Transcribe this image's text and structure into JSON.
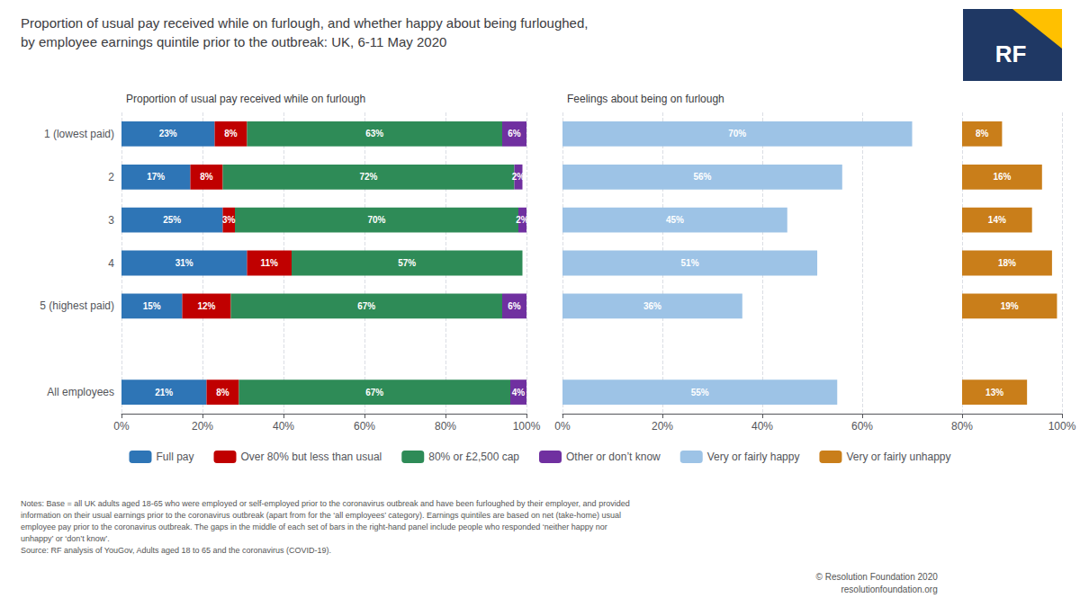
{
  "title": "Proportion of usual pay received while on furlough, and whether happy about being furloughed,\nby employee earnings quintile prior to the outbreak: UK, 6-11 May 2020",
  "notes": "Notes: Base = all UK adults aged 18-65 who were employed or self-employed prior to the coronavirus outbreak and have been furloughed by their employer, and provided\ninformation on their usual earnings prior to the coronavirus outbreak (apart from for the ‘all employees’ category). Earnings quintiles are based on net (take-home) usual\nemployee pay prior to the coronavirus outbreak. The gaps in the middle of each set of bars in the right-hand panel include people who responded ‘neither happy nor\nunhappy’ or ‘don’t know’.\nSource: RF analysis of YouGov, Adults aged 18 to 65 and the coronavirus (COVID-19).",
  "footer": "© Resolution Foundation 2020\nresolutionfoundation.org",
  "logo": "RF",
  "legend": "bottom",
  "chart_data": [
    {
      "type": "bar",
      "subtitle": "Proportion of usual pay received while on furlough",
      "orientation": "horizontal",
      "stacked": true,
      "grid": true,
      "data_labels": true,
      "categories": [
        "1 (lowest paid)",
        "2",
        "3",
        "4",
        "5 (highest paid)",
        null,
        "All employees"
      ],
      "xlim": [
        0,
        100
      ],
      "xticks": [
        {
          "value": 0,
          "label": "0%"
        },
        {
          "value": 20,
          "label": "20%"
        },
        {
          "value": 40,
          "label": "40%"
        },
        {
          "value": 60,
          "label": "60%"
        },
        {
          "value": 80,
          "label": "80%"
        },
        {
          "value": 100,
          "label": "100%"
        }
      ],
      "series": [
        {
          "name": "Full pay",
          "color": "#2e75b6",
          "values": [
            23,
            17,
            25,
            31,
            15,
            null,
            21
          ],
          "value_labels": [
            "23%",
            "17%",
            "25%",
            "31%",
            "15%",
            null,
            "21%"
          ]
        },
        {
          "name": "Over 80% but less than usual",
          "color": "#c00000",
          "values": [
            8,
            8,
            3,
            11,
            12,
            null,
            8
          ],
          "value_labels": [
            "8%",
            "8%",
            "3%",
            "11%",
            "12%",
            null,
            "8%"
          ]
        },
        {
          "name": "80% or £2,500 cap",
          "color": "#2e8b57",
          "values": [
            63,
            72,
            70,
            57,
            67,
            null,
            67
          ],
          "value_labels": [
            "63%",
            "72%",
            "70%",
            "57%",
            "67%",
            null,
            "67%"
          ]
        },
        {
          "name": "Other or don’t know",
          "color": "#7030a0",
          "values": [
            6,
            2,
            2,
            0,
            6,
            null,
            4
          ],
          "value_labels": [
            "6%",
            "2%",
            "2%",
            null,
            "6%",
            null,
            "4%"
          ]
        }
      ]
    },
    {
      "type": "bar",
      "subtitle": "Feelings about being on furlough",
      "orientation": "horizontal",
      "grid": true,
      "data_labels": true,
      "tick_labels": "x",
      "categories": [
        "1 (lowest paid)",
        "2",
        "3",
        "4",
        "5 (highest paid)",
        null,
        "All employees"
      ],
      "xlim": [
        0,
        100
      ],
      "xticks": [
        {
          "value": 0,
          "label": "0%"
        },
        {
          "value": 20,
          "label": "20%"
        },
        {
          "value": 40,
          "label": "40%"
        },
        {
          "value": 60,
          "label": "60%"
        },
        {
          "value": 80,
          "label": "80%"
        },
        {
          "value": 100,
          "label": "100%"
        }
      ],
      "series": [
        {
          "name": "Very or fairly happy",
          "color": "#9dc3e6",
          "values": [
            70,
            56,
            45,
            51,
            36,
            null,
            55
          ],
          "value_labels": [
            "70%",
            "56%",
            "45%",
            "51%",
            "36%",
            null,
            "55%"
          ]
        },
        {
          "name": "Very or fairly unhappy",
          "color": "#c97e1a",
          "start": 80,
          "values": [
            8,
            16,
            14,
            18,
            19,
            null,
            13
          ],
          "value_labels": [
            "8%",
            "16%",
            "14%",
            "18%",
            "19%",
            null,
            "13%"
          ]
        }
      ]
    }
  ]
}
